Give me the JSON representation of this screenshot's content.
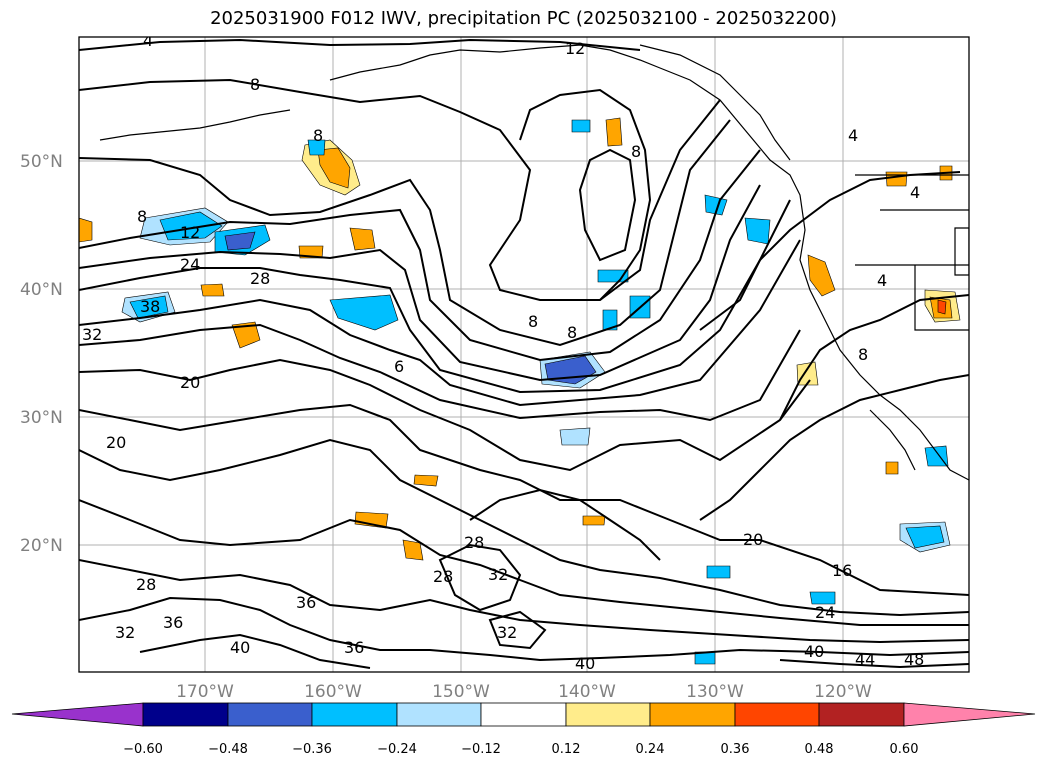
{
  "title": "2025031900 F012 IWV, precipitation PC (2025032100 - 2025032200)",
  "lat_labels": [
    "20°N",
    "30°N",
    "40°N",
    "50°N"
  ],
  "lon_labels": [
    "170°W",
    "160°W",
    "150°W",
    "140°W",
    "130°W",
    "120°W"
  ],
  "contour_labels": [
    "4",
    "8",
    "12",
    "8",
    "12",
    "24",
    "28",
    "38",
    "32",
    "20",
    "20",
    "28",
    "36",
    "32",
    "40",
    "36",
    "28",
    "28",
    "32",
    "32",
    "40",
    "36",
    "40",
    "44",
    "48",
    "24",
    "16",
    "20",
    "8",
    "8",
    "8",
    "6",
    "4",
    "4",
    "4",
    "8",
    "8"
  ],
  "colorbar": {
    "ticks": [
      "−0.60",
      "−0.48",
      "−0.36",
      "−0.24",
      "−0.12",
      "0.12",
      "0.24",
      "0.36",
      "0.48",
      "0.60"
    ],
    "colors": [
      "#9932CC",
      "#00008B",
      "#3A5FCD",
      "#00BFFF",
      "#B0E2FF",
      "#FFFFFF",
      "#FFEC8B",
      "#FFA500",
      "#FF4500",
      "#B22222",
      "#FF82AB"
    ]
  }
}
